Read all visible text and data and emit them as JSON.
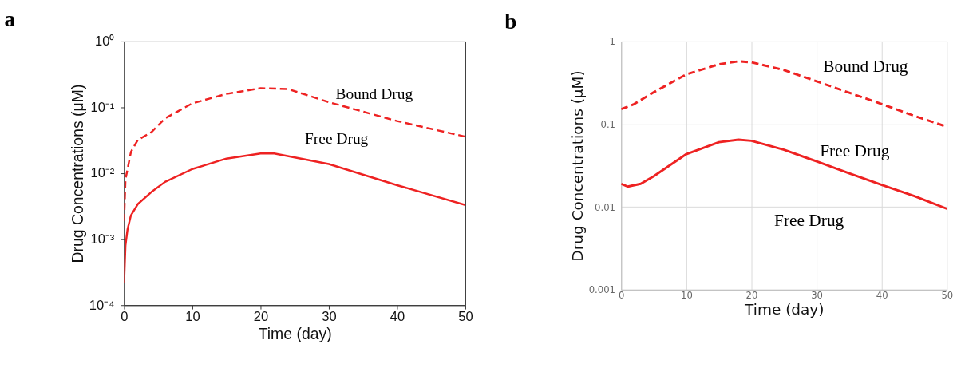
{
  "chart_data": [
    {
      "type": "line",
      "title": "a",
      "xlabel": "Time (day)",
      "ylabel": "Drug Concentrations (μM)",
      "log": true,
      "grid": false,
      "xlim": [
        0,
        50
      ],
      "xticks": [
        0,
        10,
        20,
        30,
        40,
        50
      ],
      "ylim": [
        0.0001,
        1
      ],
      "yticks": [
        {
          "value": 0.0001,
          "label": "10⁻⁴"
        },
        {
          "value": 0.001,
          "label": "10⁻³"
        },
        {
          "value": 0.01,
          "label": "10⁻²"
        },
        {
          "value": 0.1,
          "label": "10⁻¹"
        },
        {
          "value": 1,
          "label": "10⁰"
        }
      ],
      "series": [
        {
          "color": "#ee2222",
          "line_style": "dashed",
          "x": [
            0,
            0.2,
            1,
            2,
            4,
            6,
            10,
            15,
            20,
            24,
            30,
            40,
            50
          ],
          "values": [
            0.0019,
            0.008,
            0.021,
            0.032,
            0.042,
            0.068,
            0.115,
            0.16,
            0.195,
            0.19,
            0.12,
            0.062,
            0.036
          ]
        },
        {
          "color": "#ee2222",
          "line_style": "solid",
          "x": [
            0,
            0.2,
            0.5,
            1,
            2,
            4,
            6,
            10,
            15,
            20,
            22,
            30,
            40,
            50
          ],
          "values": [
            0.00022,
            0.0008,
            0.0014,
            0.0023,
            0.0034,
            0.0052,
            0.0074,
            0.0116,
            0.0167,
            0.02,
            0.02,
            0.0138,
            0.0066,
            0.0033
          ]
        }
      ],
      "annotations": [
        "Bound Drug",
        "Free Drug"
      ]
    },
    {
      "type": "line",
      "title": "b",
      "xlabel": "Time (day)",
      "ylabel": "Drug Concentrations (μM)",
      "log": true,
      "grid": true,
      "xlim": [
        0,
        50
      ],
      "xticks": [
        0,
        10,
        20,
        30,
        40,
        50
      ],
      "ylim": [
        0.001,
        1
      ],
      "yticks": [
        0.001,
        0.01,
        0.1,
        1
      ],
      "series": [
        {
          "color": "#ee2222",
          "line_style": "dashed",
          "x": [
            0,
            2,
            5,
            10,
            15,
            18,
            20,
            25,
            30,
            35,
            40,
            45,
            50
          ],
          "values": [
            0.152,
            0.175,
            0.243,
            0.4,
            0.53,
            0.575,
            0.56,
            0.45,
            0.33,
            0.24,
            0.175,
            0.126,
            0.093
          ]
        },
        {
          "color": "#ee2222",
          "line_style": "solid",
          "x": [
            0,
            1,
            3,
            5,
            10,
            15,
            18,
            20,
            25,
            30,
            35,
            40,
            45,
            50
          ],
          "values": [
            0.019,
            0.0176,
            0.019,
            0.0235,
            0.0435,
            0.0605,
            0.065,
            0.063,
            0.049,
            0.0355,
            0.0255,
            0.0184,
            0.0135,
            0.0095
          ]
        }
      ],
      "annotations": [
        "Bound Drug",
        "Free Drug",
        "Free Drug"
      ]
    }
  ]
}
